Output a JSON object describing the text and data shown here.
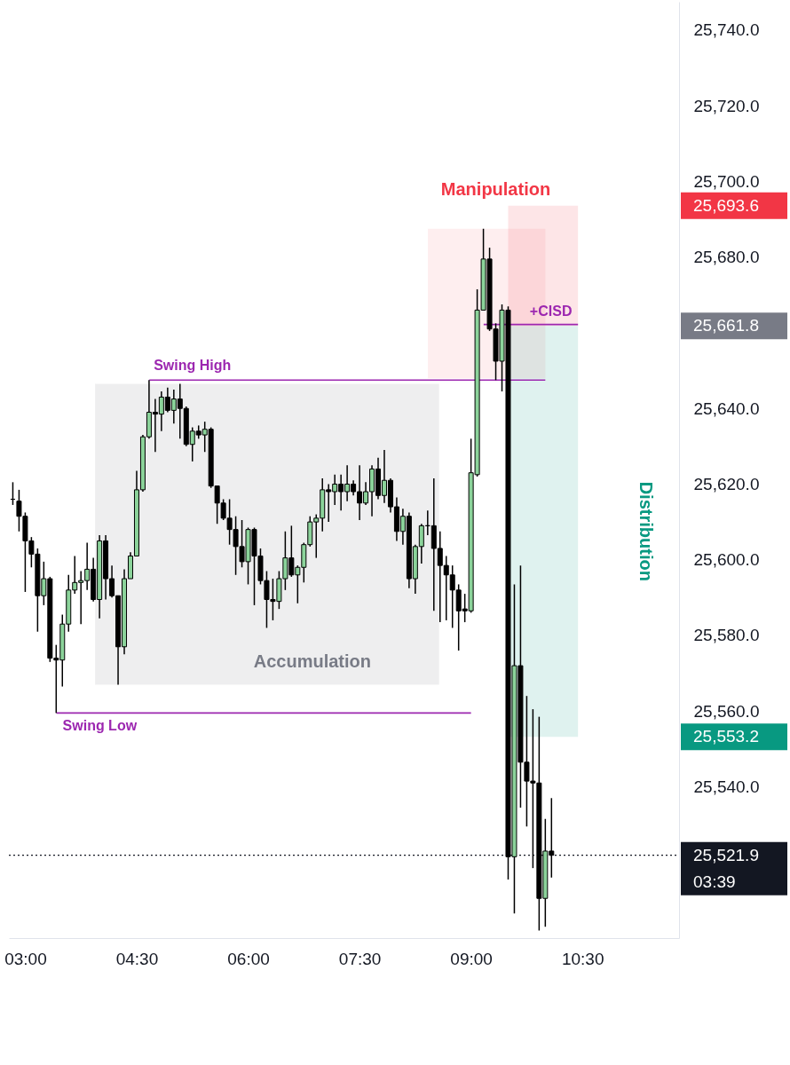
{
  "chart_data": {
    "type": "candlestick",
    "x": [
      2.8333,
      2.9167,
      3,
      3.0833,
      3.1667,
      3.25,
      3.3333,
      3.4167,
      3.5,
      3.5833,
      3.6667,
      3.75,
      3.8333,
      3.9167,
      4,
      4.0833,
      4.1667,
      4.25,
      4.3333,
      4.4167,
      4.5,
      4.5833,
      4.6667,
      4.75,
      4.8333,
      4.9167,
      5,
      5.0833,
      5.1667,
      5.25,
      5.3333,
      5.4167,
      5.5,
      5.5833,
      5.6667,
      5.75,
      5.8333,
      5.9167,
      6,
      6.0833,
      6.1667,
      6.25,
      6.3333,
      6.4167,
      6.5,
      6.5833,
      6.6667,
      6.75,
      6.8333,
      6.9167,
      7,
      7.0833,
      7.1667,
      7.25,
      7.3333,
      7.4167,
      7.5,
      7.5833,
      7.6667,
      7.75,
      7.8333,
      7.9167,
      8,
      8.0833,
      8.1667,
      8.25,
      8.3333,
      8.4167,
      8.5,
      8.5833,
      8.6667,
      8.75,
      8.8333,
      8.9167,
      9,
      9.0833,
      9.1667,
      9.25,
      9.3333,
      9.4167,
      9.5,
      9.5833,
      9.6667,
      9.75,
      9.8333,
      9.9167,
      10,
      10.0833
    ],
    "ohlc": [
      [
        25616,
        25620.5,
        25614.5,
        25616
      ],
      [
        25615.5,
        25618.5,
        25607.5,
        25611.5
      ],
      [
        25611.5,
        25612.5,
        25591.5,
        25605
      ],
      [
        25605,
        25606,
        25598,
        25601.5
      ],
      [
        25601.5,
        25603,
        25581,
        25590.5
      ],
      [
        25590.5,
        25599.5,
        25588,
        25595
      ],
      [
        25595,
        25595.5,
        25573,
        25574
      ],
      [
        25574,
        25577.5,
        25559.5,
        25573.5
      ],
      [
        25573.5,
        25585.5,
        25566.5,
        25583
      ],
      [
        25583,
        25596,
        25581,
        25592
      ],
      [
        25592,
        25601,
        25591,
        25594
      ],
      [
        25594,
        25597,
        25583,
        25594.5
      ],
      [
        25594.5,
        25604.5,
        25592,
        25597.5
      ],
      [
        25597.5,
        25600.5,
        25589,
        25589.5
      ],
      [
        25589.5,
        25606.5,
        25584.5,
        25605
      ],
      [
        25605,
        25606.5,
        25589.5,
        25595
      ],
      [
        25595,
        25598.5,
        25590,
        25590.5
      ],
      [
        25590.5,
        25590.5,
        25567,
        25577
      ],
      [
        25577,
        25597.5,
        25575,
        25595
      ],
      [
        25595,
        25602,
        25595,
        25601
      ],
      [
        25601,
        25623.5,
        25601,
        25618.5
      ],
      [
        25618.5,
        25633,
        25618,
        25632.5
      ],
      [
        25632.5,
        25647.5,
        25632,
        25639
      ],
      [
        25639,
        25642.5,
        25628.5,
        25638.5
      ],
      [
        25638.5,
        25644.5,
        25634,
        25643
      ],
      [
        25643,
        25645.5,
        25639,
        25639.5
      ],
      [
        25639.5,
        25645,
        25636,
        25642.5
      ],
      [
        25642.5,
        25646.5,
        25632,
        25640
      ],
      [
        25640,
        25640.5,
        25630,
        25630.5
      ],
      [
        25630.5,
        25635,
        25626,
        25634
      ],
      [
        25634,
        25635.5,
        25632,
        25633
      ],
      [
        25633,
        25636.5,
        25628.5,
        25634.5
      ],
      [
        25634.5,
        25635,
        25619,
        25619.5
      ],
      [
        25619.5,
        25619.5,
        25609.5,
        25615
      ],
      [
        25615,
        25616,
        25610.5,
        25611
      ],
      [
        25611,
        25616,
        25604,
        25608
      ],
      [
        25608,
        25611.5,
        25596,
        25603.5
      ],
      [
        25603.5,
        25610.5,
        25598,
        25599.5
      ],
      [
        25599.5,
        25608.5,
        25593.5,
        25608
      ],
      [
        25608,
        25608.5,
        25588,
        25601
      ],
      [
        25601,
        25603,
        25593.5,
        25594.5
      ],
      [
        25594.5,
        25597,
        25582,
        25589.5
      ],
      [
        25589.5,
        25595,
        25584,
        25589
      ],
      [
        25589,
        25597,
        25587,
        25595
      ],
      [
        25595,
        25607.5,
        25592,
        25600.5
      ],
      [
        25600.5,
        25609,
        25595.5,
        25596
      ],
      [
        25596,
        25598.5,
        25588.5,
        25598
      ],
      [
        25598,
        25604.5,
        25594,
        25604
      ],
      [
        25604,
        25611.5,
        25603.5,
        25610
      ],
      [
        25610,
        25612,
        25600.5,
        25611
      ],
      [
        25611,
        25621.5,
        25607.5,
        25618.5
      ],
      [
        25618.5,
        25620,
        25610,
        25618
      ],
      [
        25618,
        25622.5,
        25614.5,
        25620
      ],
      [
        25620,
        25622.5,
        25613,
        25618
      ],
      [
        25618,
        25625,
        25615.5,
        25620
      ],
      [
        25620,
        25621,
        25617,
        25618
      ],
      [
        25618,
        25625,
        25610.5,
        25615
      ],
      [
        25615,
        25620.5,
        25614.5,
        25618
      ],
      [
        25618,
        25625,
        25611.5,
        25624
      ],
      [
        25624,
        25627,
        25616,
        25617
      ],
      [
        25617,
        25629,
        25615,
        25621
      ],
      [
        25621,
        25621.5,
        25612.5,
        25614
      ],
      [
        25614,
        25616.5,
        25605,
        25607.5
      ],
      [
        25607.5,
        25613.5,
        25604,
        25611.5
      ],
      [
        25611.5,
        25612.5,
        25592.5,
        25595
      ],
      [
        25595,
        25604,
        25591,
        25603.5
      ],
      [
        25603.5,
        25609.5,
        25599,
        25609
      ],
      [
        25609,
        25613,
        25606.5,
        25609
      ],
      [
        25609,
        25621.5,
        25586.5,
        25603
      ],
      [
        25603,
        25607.5,
        25583.5,
        25598.5
      ],
      [
        25598.5,
        25601,
        25584,
        25596
      ],
      [
        25596,
        25598.5,
        25582,
        25592
      ],
      [
        25592,
        25593.5,
        25576,
        25586.5
      ],
      [
        25587,
        25591,
        25583.5,
        25586.5
      ],
      [
        25586.5,
        25632,
        25586,
        25623
      ],
      [
        25622.5,
        25671.5,
        25622,
        25666
      ],
      [
        25666,
        25687.5,
        25666,
        25679.5
      ],
      [
        25679.5,
        25682.5,
        25660.5,
        25661
      ],
      [
        25661,
        25662.5,
        25647.5,
        25652.5
      ],
      [
        25652.5,
        25667.5,
        25644.5,
        25666
      ],
      [
        25666,
        25667,
        25515.5,
        25521.5
      ],
      [
        25521.5,
        25593.5,
        25506.5,
        25572
      ],
      [
        25572,
        25598.5,
        25534.5,
        25546.5
      ],
      [
        25546.5,
        25564,
        25529.5,
        25541.5
      ],
      [
        25541.5,
        25560.5,
        25518.5,
        25541
      ],
      [
        25541,
        25558.5,
        25502,
        25510.5
      ],
      [
        25510.5,
        25531.5,
        25503,
        25523
      ],
      [
        25523,
        25537,
        25516,
        25521.9
      ]
    ],
    "colors": [
      "#000000",
      "#000000",
      "#000000",
      "#000000",
      "#000000",
      "#8bd39a",
      "#000000",
      "#000000",
      "#8bd39a",
      "#8bd39a",
      "#8bd39a",
      "#8bd39a",
      "#8bd39a",
      "#000000",
      "#8bd39a",
      "#000000",
      "#000000",
      "#000000",
      "#8bd39a",
      "#8bd39a",
      "#8bd39a",
      "#8bd39a",
      "#8bd39a",
      "#000000",
      "#8bd39a",
      "#000000",
      "#8bd39a",
      "#000000",
      "#000000",
      "#8bd39a",
      "#000000",
      "#8bd39a",
      "#000000",
      "#000000",
      "#000000",
      "#000000",
      "#000000",
      "#000000",
      "#8bd39a",
      "#000000",
      "#000000",
      "#000000",
      "#000000",
      "#8bd39a",
      "#8bd39a",
      "#000000",
      "#8bd39a",
      "#8bd39a",
      "#8bd39a",
      "#8bd39a",
      "#8bd39a",
      "#000000",
      "#8bd39a",
      "#000000",
      "#8bd39a",
      "#000000",
      "#000000",
      "#8bd39a",
      "#8bd39a",
      "#000000",
      "#8bd39a",
      "#000000",
      "#000000",
      "#8bd39a",
      "#000000",
      "#8bd39a",
      "#8bd39a",
      "#000000",
      "#000000",
      "#000000",
      "#000000",
      "#000000",
      "#000000",
      "#000000",
      "#8bd39a",
      "#8bd39a",
      "#8bd39a",
      "#000000",
      "#000000",
      "#8bd39a",
      "#000000",
      "#8bd39a",
      "#000000",
      "#000000",
      "#000000",
      "#000000",
      "#8bd39a",
      "#000000"
    ],
    "color": "#000000",
    "series": [
      {
        "type": "line",
        "name": "Accumulation",
        "color": "#787b86",
        "x": [
          3.94,
          8.57
        ],
        "values": [
          null,
          null
        ],
        "lower": [
          25567,
          25567
        ],
        "upper": [
          25646.5,
          25646.5
        ]
      },
      {
        "type": "line",
        "color": "#f77c87",
        "x": [
          8.42,
          10
        ],
        "values": [
          null,
          null
        ],
        "lower": [
          25648,
          25648
        ],
        "upper": [
          25687.5,
          25687.5
        ]
      },
      {
        "type": "line",
        "name": "Manipulation",
        "color": "#f23645",
        "x": [
          9.5,
          10.44
        ],
        "values": [
          null,
          null
        ],
        "lower": [
          25661.8,
          25661.8
        ],
        "upper": [
          25693.6,
          25693.6
        ]
      },
      {
        "type": "line",
        "name": "Distribution",
        "color": "#089981",
        "x": [
          9.5,
          10.44
        ],
        "values": [
          null,
          null
        ],
        "lower": [
          25553.2,
          25553.2
        ],
        "upper": [
          25661.8,
          25661.8
        ]
      },
      {
        "type": "line",
        "name": "Swing High",
        "color": "#9c27b0",
        "x": [
          4.67,
          10
        ],
        "values": [
          25647.5,
          25647.5
        ]
      },
      {
        "type": "line",
        "name": "Swing Low",
        "color": "#9c27b0",
        "x": [
          3.42,
          9
        ],
        "values": [
          25559.5,
          25559.5
        ]
      },
      {
        "type": "line",
        "name": "+CISD",
        "color": "#9c27b0",
        "x": [
          9.17,
          10.44
        ],
        "values": [
          25662.2,
          25662.2
        ]
      }
    ],
    "ref_lines": [
      {
        "axis": "y",
        "value": 25521.9,
        "label": "25,521.9",
        "color": "#131722",
        "line_style": "dotted"
      }
    ],
    "annotations": [
      "03:39"
    ],
    "xlim": [
      2.78,
      11.8
    ],
    "ylim": [
      25500,
      25747.5
    ],
    "xticks": [
      {
        "value": 3,
        "label": "03:00"
      },
      {
        "value": 4.5,
        "label": "04:30"
      },
      {
        "value": 6,
        "label": "06:00"
      },
      {
        "value": 7.5,
        "label": "07:30"
      },
      {
        "value": 9,
        "label": "09:00"
      },
      {
        "value": 10.5,
        "label": "10:30"
      }
    ],
    "yticks": [
      {
        "value": 25740,
        "label": "25,740.0"
      },
      {
        "value": 25720,
        "label": "25,720.0"
      },
      {
        "value": 25700,
        "label": "25,700.0"
      },
      {
        "value": 25693.6,
        "label": "25,693.6"
      },
      {
        "value": 25680,
        "label": "25,680.0"
      },
      {
        "value": 25661.8,
        "label": "25,661.8"
      },
      {
        "value": 25640,
        "label": "25,640.0"
      },
      {
        "value": 25620,
        "label": "25,620.0"
      },
      {
        "value": 25600,
        "label": "25,600.0"
      },
      {
        "value": 25580,
        "label": "25,580.0"
      },
      {
        "value": 25560,
        "label": "25,560.0"
      },
      {
        "value": 25553.2,
        "label": "25,553.2"
      },
      {
        "value": 25540,
        "label": "25,540.0"
      }
    ]
  }
}
